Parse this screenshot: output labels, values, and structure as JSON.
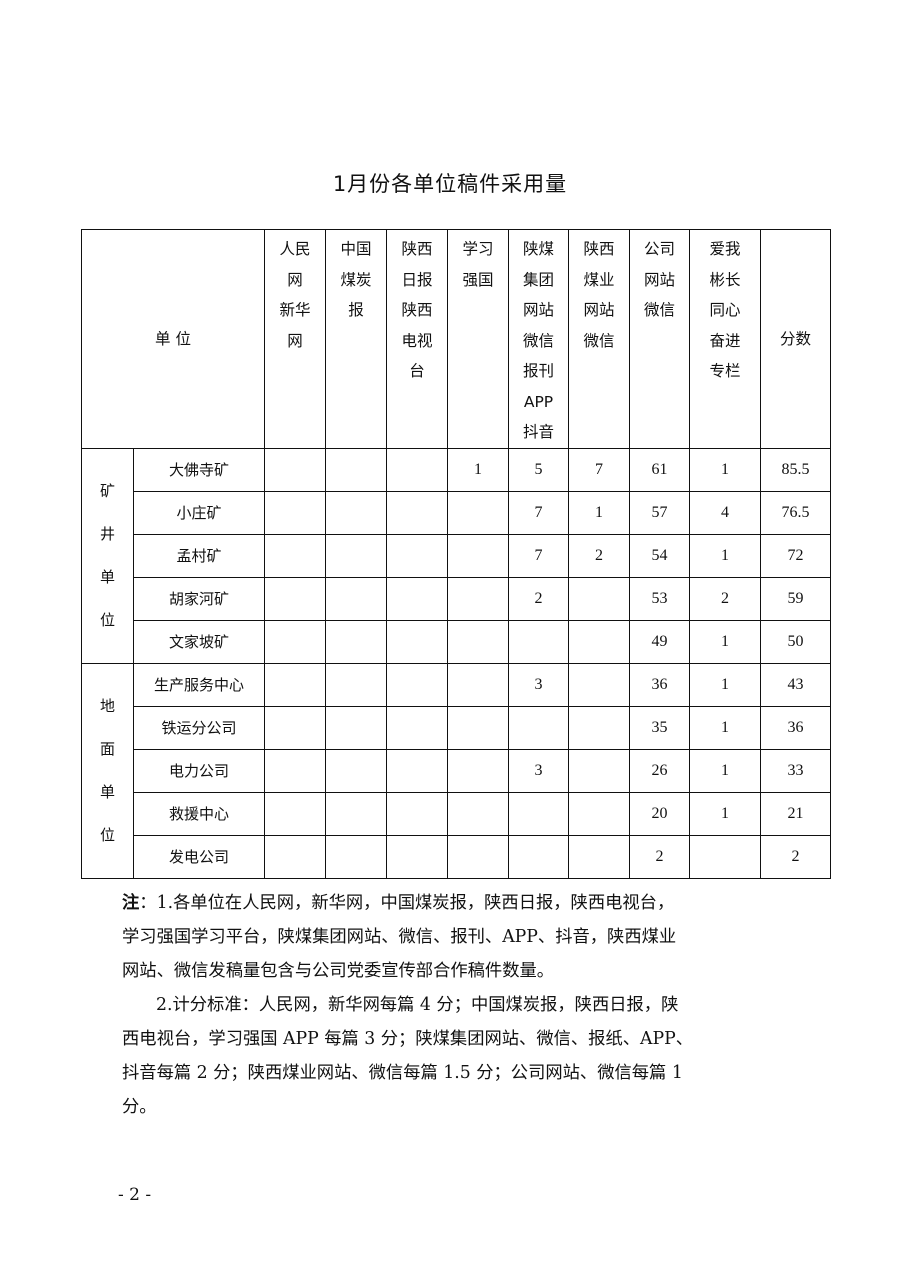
{
  "title": "1月份各单位稿件采用量",
  "table": {
    "unit_header": "单 位",
    "columns": [
      "人民\n网\n新华\n网",
      "中国\n煤炭\n报",
      "陕西\n日报\n陕西\n电视\n台",
      "学习\n强国",
      "陕煤\n集团\n网站\n微信\n报刊\nAPP\n抖音",
      "陕西\n煤业\n网站\n微信",
      "公司\n网站\n微信",
      "爱我\n彬长\n同心\n奋进\n专栏",
      "分数"
    ],
    "groups": [
      {
        "label": "矿\n井\n单\n位",
        "rows": [
          {
            "name": "大佛寺矿",
            "values": [
              "",
              "",
              "",
              "1",
              "5",
              "7",
              "61",
              "1",
              "85.5"
            ]
          },
          {
            "name": "小庄矿",
            "values": [
              "",
              "",
              "",
              "",
              "7",
              "1",
              "57",
              "4",
              "76.5"
            ]
          },
          {
            "name": "孟村矿",
            "values": [
              "",
              "",
              "",
              "",
              "7",
              "2",
              "54",
              "1",
              "72"
            ]
          },
          {
            "name": "胡家河矿",
            "values": [
              "",
              "",
              "",
              "",
              "2",
              "",
              "53",
              "2",
              "59"
            ]
          },
          {
            "name": "文家坡矿",
            "values": [
              "",
              "",
              "",
              "",
              "",
              "",
              "49",
              "1",
              "50"
            ]
          }
        ]
      },
      {
        "label": "地\n面\n单\n位",
        "rows": [
          {
            "name": "生产服务中心",
            "values": [
              "",
              "",
              "",
              "",
              "3",
              "",
              "36",
              "1",
              "43"
            ]
          },
          {
            "name": "铁运分公司",
            "values": [
              "",
              "",
              "",
              "",
              "",
              "",
              "35",
              "1",
              "36"
            ]
          },
          {
            "name": "电力公司",
            "values": [
              "",
              "",
              "",
              "",
              "3",
              "",
              "26",
              "1",
              "33"
            ]
          },
          {
            "name": "救援中心",
            "values": [
              "",
              "",
              "",
              "",
              "",
              "",
              "20",
              "1",
              "21"
            ]
          },
          {
            "name": "发电公司",
            "values": [
              "",
              "",
              "",
              "",
              "",
              "",
              "2",
              "",
              "2"
            ]
          }
        ]
      }
    ]
  },
  "notes": {
    "label": "注",
    "lines": [
      "：1.各单位在人民网，新华网，中国煤炭报，陕西日报，陕西电视台，",
      "学习强国学习平台，陕煤集团网站、微信、报刊、APP、抖音，陕西煤业",
      "网站、微信发稿量包含与公司党委宣传部合作稿件数量。",
      "2.计分标准：人民网，新华网每篇 4 分；中国煤炭报，陕西日报，陕",
      "西电视台，学习强国 APP 每篇 3 分；陕煤集团网站、微信、报纸、APP、",
      "抖音每篇 2 分；陕西煤业网站、微信每篇 1.5 分；公司网站、微信每篇 1",
      "分。"
    ]
  },
  "page_number": "- 2 -"
}
